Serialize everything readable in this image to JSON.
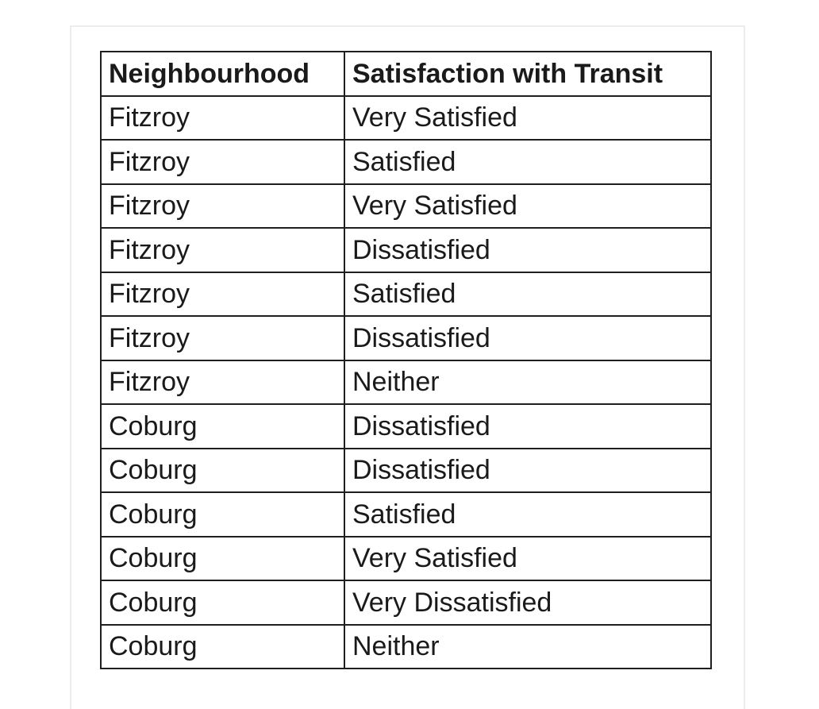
{
  "table": {
    "columns": [
      "Neighbourhood",
      "Satisfaction with Transit"
    ],
    "rows": [
      [
        "Fitzroy",
        "Very Satisfied"
      ],
      [
        "Fitzroy",
        "Satisfied"
      ],
      [
        "Fitzroy",
        "Very Satisfied"
      ],
      [
        "Fitzroy",
        "Dissatisfied"
      ],
      [
        "Fitzroy",
        "Satisfied"
      ],
      [
        "Fitzroy",
        "Dissatisfied"
      ],
      [
        "Fitzroy",
        "Neither"
      ],
      [
        "Coburg",
        "Dissatisfied"
      ],
      [
        "Coburg",
        "Dissatisfied"
      ],
      [
        "Coburg",
        "Satisfied"
      ],
      [
        "Coburg",
        "Very Satisfied"
      ],
      [
        "Coburg",
        "Very Dissatisfied"
      ],
      [
        "Coburg",
        "Neither"
      ]
    ]
  },
  "colors": {
    "background": "#ffffff",
    "card_border": "#ececec",
    "table_border": "#1f1f1f",
    "text": "#1a1a1a"
  }
}
